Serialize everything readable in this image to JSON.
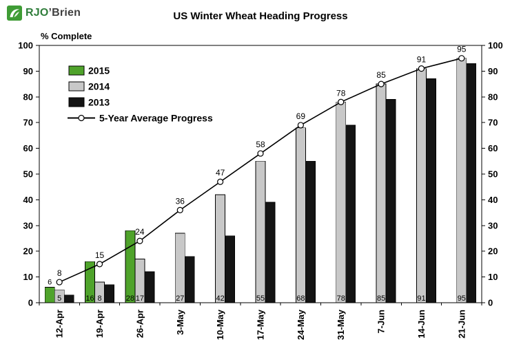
{
  "logo": {
    "icon": "rjobrien-logo-icon",
    "brand_primary": "RJO",
    "brand_secondary": "’Brien",
    "icon_color": "#3f9c35"
  },
  "header": {
    "title": "US Winter Wheat Heading Progress"
  },
  "chart_data": {
    "type": "combo_bar_line",
    "title": "US Winter Wheat Heading Progress",
    "ylabel": "% Complete",
    "ylim": [
      0,
      100
    ],
    "ytick_step": 10,
    "grid": false,
    "legend_position": "inside-top-left",
    "axes": {
      "left": true,
      "right": true
    },
    "categories": [
      "12-Apr",
      "19-Apr",
      "26-Apr",
      "3-May",
      "10-May",
      "17-May",
      "24-May",
      "31-May",
      "7-Jun",
      "14-Jun",
      "21-Jun"
    ],
    "series": [
      {
        "name": "2015",
        "type": "bar",
        "color": "#4fa32b",
        "values": [
          6,
          16,
          28,
          null,
          null,
          null,
          null,
          null,
          null,
          null,
          null
        ],
        "label_positions": [
          "above",
          "base",
          "base"
        ]
      },
      {
        "name": "2014",
        "type": "bar",
        "color": "#c8c8c8",
        "values": [
          5,
          8,
          17,
          27,
          42,
          55,
          68,
          78,
          85,
          91,
          95
        ],
        "label_positions": "base"
      },
      {
        "name": "2013",
        "type": "bar",
        "color": "#141414",
        "values": [
          3,
          7,
          12,
          18,
          26,
          39,
          55,
          69,
          79,
          87,
          93
        ]
      },
      {
        "name": "5-Year Average Progress",
        "type": "line",
        "color": "#000000",
        "marker": "open-circle",
        "values": [
          8,
          15,
          24,
          36,
          47,
          58,
          69,
          78,
          85,
          91,
          95
        ],
        "labels_shown": true
      }
    ]
  }
}
